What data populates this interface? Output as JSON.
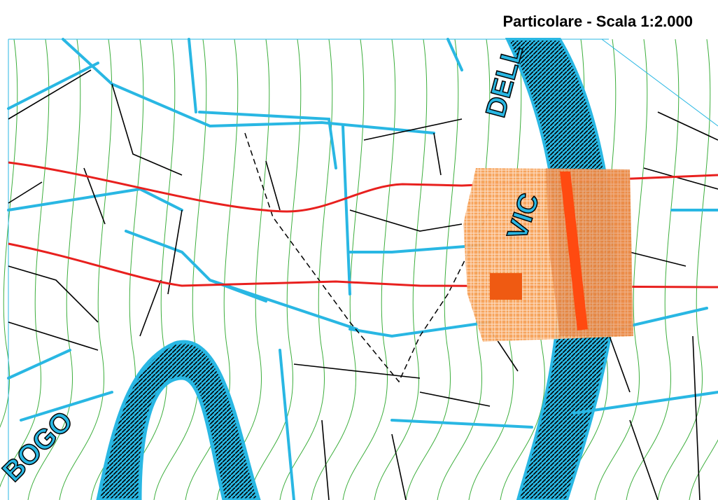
{
  "header": {
    "title": "Particolare  -  Scala 1:2.000"
  },
  "map": {
    "labels": [
      "DELL",
      "VIC",
      "BOGO"
    ]
  }
}
